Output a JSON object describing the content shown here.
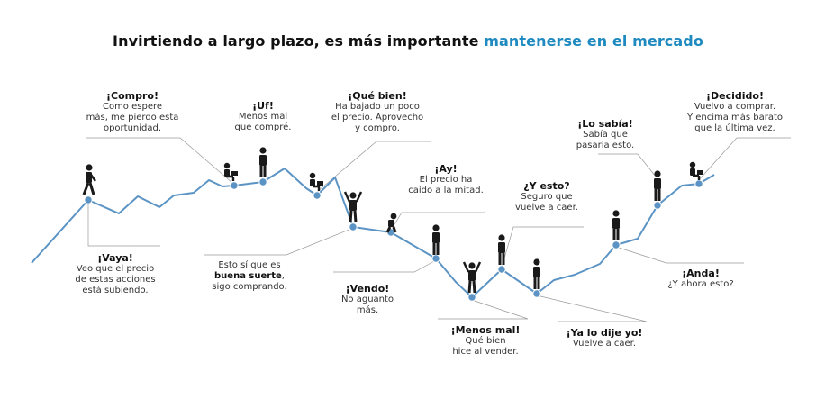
{
  "title": {
    "prefix": "Invirtiendo a largo plazo, es más importante ",
    "highlight": "mantenerse en el mercado"
  },
  "colors": {
    "line": "#5b94c4",
    "dot": "#5b94c4",
    "highlight": "#1f8ac0",
    "leader": "#9a9a9a",
    "figure": "#1a1a1a"
  },
  "annotations": [
    {
      "id": "vaya",
      "heading": "¡Vaya!",
      "lines": [
        "Veo que el precio",
        "de estas acciones",
        "está subiendo."
      ]
    },
    {
      "id": "compro",
      "heading": "¡Compro!",
      "lines": [
        "Como espere",
        "más, me pierdo esta",
        "oportunidad."
      ]
    },
    {
      "id": "uf",
      "heading": "¡Uf!",
      "lines": [
        "Menos mal",
        "que compré."
      ]
    },
    {
      "id": "buena-suerte",
      "heading": "",
      "lines": [
        "Esto sí que es"
      ],
      "bold_line": "buena suerte",
      "bold_suffix": ",",
      "last_line": "sigo comprando."
    },
    {
      "id": "que-bien",
      "heading": "¡Qué bien!",
      "lines": [
        "Ha bajado un poco",
        "el precio. Aprovecho",
        "y compro."
      ]
    },
    {
      "id": "ay",
      "heading": "¡Ay!",
      "lines": [
        "El precio ha",
        "caído a la mitad."
      ]
    },
    {
      "id": "vendo",
      "heading": "¡Vendo!",
      "lines": [
        "No aguanto",
        "más."
      ]
    },
    {
      "id": "menos-mal",
      "heading": "¡Menos mal!",
      "lines": [
        "Qué bien",
        "hice al vender."
      ]
    },
    {
      "id": "y-esto",
      "heading": "¿Y esto?",
      "lines": [
        "Seguro que",
        "vuelve a caer."
      ]
    },
    {
      "id": "ya-lo-dije",
      "heading": "¡Ya lo dije yo!",
      "lines": [
        "Vuelve a caer."
      ]
    },
    {
      "id": "lo-sabia",
      "heading": "¡Lo sabía!",
      "lines": [
        "Sabía que",
        "pasaría esto."
      ]
    },
    {
      "id": "anda",
      "heading": "¡Anda!",
      "lines": [
        "¿Y ahora esto?"
      ]
    },
    {
      "id": "decidido",
      "heading": "¡Decidido!",
      "lines": [
        "Vuelvo a comprar.",
        "Y encima más barato",
        "que la última vez."
      ]
    }
  ]
}
